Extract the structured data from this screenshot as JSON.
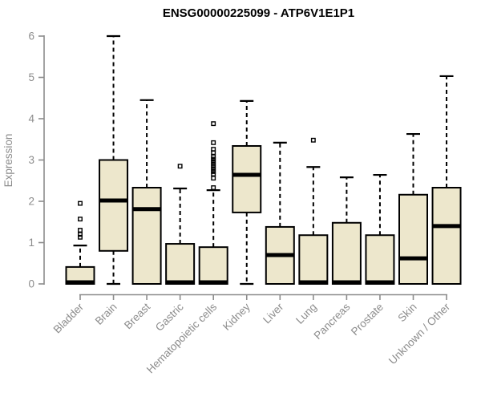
{
  "chart_data": {
    "type": "boxplot",
    "title": "ENSG00000225099 - ATP6V1E1P1",
    "ylabel": "Expression",
    "xlabel": "",
    "ylim": [
      0,
      6
    ],
    "yticks": [
      0,
      1,
      2,
      3,
      4,
      5,
      6
    ],
    "grid": false,
    "legend": false,
    "categories": [
      "Bladder",
      "Brain",
      "Breast",
      "Gastric",
      "Hematopoietic cells",
      "Kidney",
      "Liver",
      "Lung",
      "Pancreas",
      "Prostate",
      "Skin",
      "Unknown / Other"
    ],
    "series": [
      {
        "name": "Bladder",
        "whisker_low": 0,
        "q1": 0,
        "median": 0.04,
        "q3": 0.41,
        "whisker_high": 0.93,
        "outliers": [
          1.95,
          1.57,
          1.3,
          1.2,
          1.13
        ]
      },
      {
        "name": "Brain",
        "whisker_low": 0,
        "q1": 0.8,
        "median": 2.02,
        "q3": 3.0,
        "whisker_high": 6.0,
        "outliers": []
      },
      {
        "name": "Breast",
        "whisker_low": 0,
        "q1": 0,
        "median": 1.81,
        "q3": 2.33,
        "whisker_high": 4.45,
        "outliers": []
      },
      {
        "name": "Gastric",
        "whisker_low": 0,
        "q1": 0,
        "median": 0.04,
        "q3": 0.97,
        "whisker_high": 2.31,
        "outliers": [
          2.85
        ]
      },
      {
        "name": "Hematopoietic cells",
        "whisker_low": 0,
        "q1": 0,
        "median": 0.04,
        "q3": 0.89,
        "whisker_high": 2.27,
        "outliers": [
          3.88,
          3.42,
          3.26,
          3.18,
          3.08,
          3.02,
          2.96,
          2.9,
          2.84,
          2.78,
          2.72,
          2.66,
          2.56,
          2.33
        ]
      },
      {
        "name": "Kidney",
        "whisker_low": 0,
        "q1": 1.73,
        "median": 2.64,
        "q3": 3.34,
        "whisker_high": 4.43,
        "outliers": []
      },
      {
        "name": "Liver",
        "whisker_low": 0,
        "q1": 0,
        "median": 0.7,
        "q3": 1.38,
        "whisker_high": 3.42,
        "outliers": []
      },
      {
        "name": "Lung",
        "whisker_low": 0,
        "q1": 0,
        "median": 0.04,
        "q3": 1.18,
        "whisker_high": 2.83,
        "outliers": [
          3.48
        ]
      },
      {
        "name": "Pancreas",
        "whisker_low": 0,
        "q1": 0,
        "median": 0.04,
        "q3": 1.48,
        "whisker_high": 2.58,
        "outliers": []
      },
      {
        "name": "Prostate",
        "whisker_low": 0,
        "q1": 0,
        "median": 0.04,
        "q3": 1.18,
        "whisker_high": 2.64,
        "outliers": []
      },
      {
        "name": "Skin",
        "whisker_low": 0,
        "q1": 0,
        "median": 0.62,
        "q3": 2.16,
        "whisker_high": 3.63,
        "outliers": []
      },
      {
        "name": "Unknown / Other",
        "whisker_low": 0,
        "q1": 0,
        "median": 1.4,
        "q3": 2.33,
        "whisker_high": 5.03,
        "outliers": []
      }
    ],
    "colors": {
      "box_fill": "#EDE7CC",
      "box_border": "#000000",
      "median": "#000000",
      "whisker": "#000000",
      "axis": "#8C8C8C",
      "tick_text": "#8C8C8C",
      "title_text": "#000000",
      "background": "#FFFFFF"
    }
  }
}
